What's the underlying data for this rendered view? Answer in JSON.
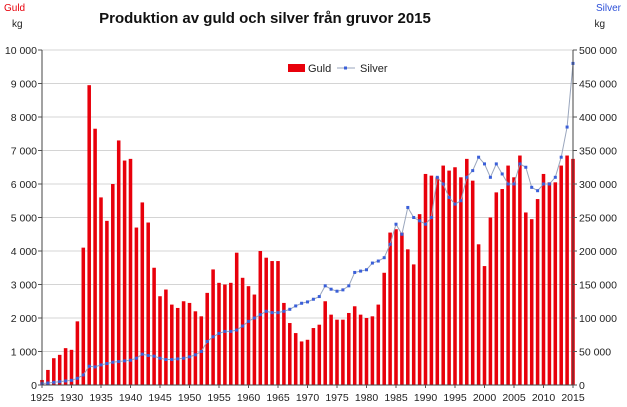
{
  "chart_data": {
    "type": "bar",
    "title": "Produktion av guld och silver  från gruvor 2015",
    "left_axis": {
      "label": "Guld",
      "unit": "kg",
      "label_color": "#e8000b",
      "range": [
        0,
        10000
      ],
      "ticks": [
        "0",
        "1 000",
        "2 000",
        "3 000",
        "4 000",
        "5 000",
        "6 000",
        "7 000",
        "8 000",
        "9 000",
        "10 000"
      ]
    },
    "right_axis": {
      "label": "Silver",
      "unit": "kg",
      "label_color": "#2c4fd8",
      "range": [
        0,
        500000
      ],
      "ticks": [
        "0",
        "50 000",
        "100 000",
        "150 000",
        "200 000",
        "250 000",
        "300 000",
        "350 000",
        "400 000",
        "450 000",
        "500 000"
      ]
    },
    "x_ticks": [
      "1925",
      "1930",
      "1935",
      "1940",
      "1945",
      "1950",
      "1955",
      "1960",
      "1965",
      "1970",
      "1975",
      "1980",
      "1985",
      "1990",
      "1995",
      "2000",
      "2005",
      "2010",
      "2015"
    ],
    "x_range": [
      1925,
      2015
    ],
    "legend": {
      "position": "top-center",
      "items": [
        "Guld",
        "Silver"
      ]
    },
    "colors": {
      "gold": "#e8000b",
      "silver": "#3a5fd9",
      "silver_line": "#9aa6bd"
    },
    "years": [
      1925,
      1926,
      1927,
      1928,
      1929,
      1930,
      1931,
      1932,
      1933,
      1934,
      1935,
      1936,
      1937,
      1938,
      1939,
      1940,
      1941,
      1942,
      1943,
      1944,
      1945,
      1946,
      1947,
      1948,
      1949,
      1950,
      1951,
      1952,
      1953,
      1954,
      1955,
      1956,
      1957,
      1958,
      1959,
      1960,
      1961,
      1962,
      1963,
      1964,
      1965,
      1966,
      1967,
      1968,
      1969,
      1970,
      1971,
      1972,
      1973,
      1974,
      1975,
      1976,
      1977,
      1978,
      1979,
      1980,
      1981,
      1982,
      1983,
      1984,
      1985,
      1986,
      1987,
      1988,
      1989,
      1990,
      1991,
      1992,
      1993,
      1994,
      1995,
      1996,
      1997,
      1998,
      1999,
      2000,
      2001,
      2002,
      2003,
      2004,
      2005,
      2006,
      2007,
      2008,
      2009,
      2010,
      2011,
      2012,
      2013,
      2014,
      2015
    ],
    "series": [
      {
        "name": "Guld",
        "axis": "left",
        "style": "bar",
        "values": [
          150,
          450,
          800,
          900,
          1100,
          1050,
          1900,
          4100,
          8950,
          7650,
          5600,
          4900,
          6000,
          7300,
          6700,
          6750,
          4700,
          5450,
          4850,
          3500,
          2650,
          2850,
          2400,
          2300,
          2500,
          2450,
          2200,
          2050,
          2750,
          3450,
          3050,
          3000,
          3050,
          3950,
          3200,
          2950,
          2700,
          4000,
          3800,
          3700,
          3700,
          2450,
          1850,
          1550,
          1300,
          1350,
          1700,
          1800,
          2500,
          2100,
          1950,
          1950,
          2150,
          2350,
          2100,
          2000,
          2050,
          2400,
          3350,
          4550,
          4650,
          4550,
          4050,
          3600,
          5100,
          6300,
          6250,
          6200,
          6550,
          6400,
          6500,
          6200,
          6750,
          6100,
          4200,
          3550,
          5000,
          5750,
          5850,
          6550,
          6200,
          6850,
          5150,
          4950,
          5550,
          6300,
          6050,
          6050,
          6550,
          6850,
          6750
        ]
      },
      {
        "name": "Silver",
        "axis": "right",
        "style": "line-markers",
        "values": [
          2000,
          3000,
          4000,
          5000,
          6000,
          7000,
          10000,
          15000,
          28000,
          27000,
          30000,
          32000,
          34000,
          35000,
          36000,
          37000,
          40000,
          46000,
          44000,
          43000,
          40000,
          38000,
          38000,
          39000,
          40000,
          42000,
          45000,
          50000,
          65000,
          72000,
          77000,
          80000,
          80000,
          82000,
          88000,
          95000,
          100000,
          105000,
          110000,
          108000,
          108000,
          110000,
          113000,
          118000,
          122000,
          124000,
          128000,
          132000,
          148000,
          143000,
          140000,
          142000,
          148000,
          168000,
          170000,
          172000,
          182000,
          185000,
          190000,
          210000,
          240000,
          225000,
          265000,
          250000,
          245000,
          240000,
          250000,
          310000,
          300000,
          280000,
          270000,
          275000,
          310000,
          320000,
          340000,
          330000,
          310000,
          330000,
          315000,
          300000,
          300000,
          330000,
          325000,
          295000,
          290000,
          300000,
          300000,
          310000,
          340000,
          385000,
          480000
        ]
      }
    ]
  }
}
